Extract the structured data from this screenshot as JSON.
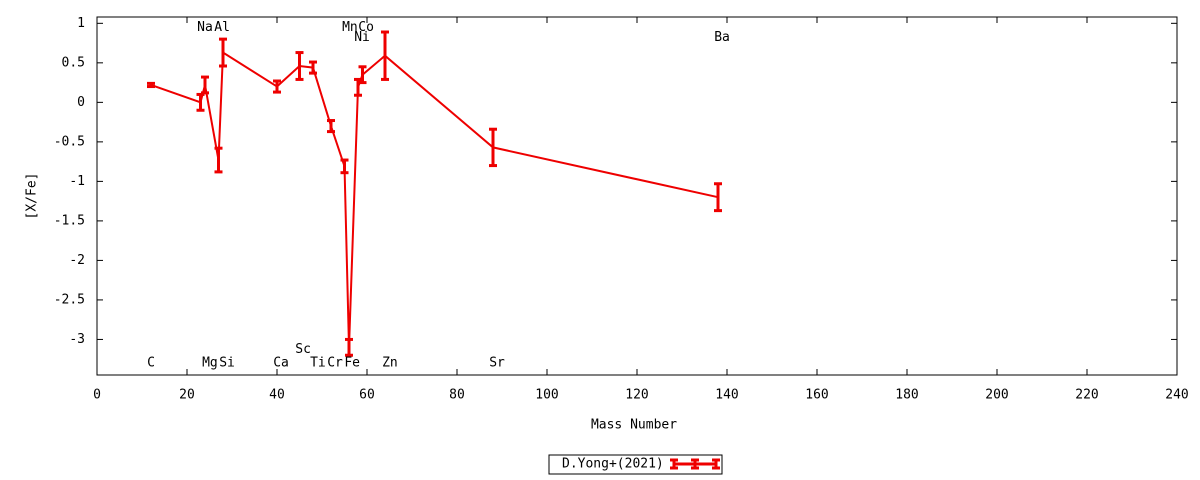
{
  "chart_data": {
    "type": "line",
    "xlabel": "Mass Number",
    "ylabel": "[X/Fe]",
    "xlim": [
      0,
      240
    ],
    "ylim": [
      -3.45,
      1.08
    ],
    "xticks": [
      0,
      20,
      40,
      60,
      80,
      100,
      120,
      140,
      160,
      180,
      200,
      220,
      240
    ],
    "yticks": [
      -3,
      -2.5,
      -2,
      -1.5,
      -1,
      -0.5,
      0,
      0.5,
      1
    ],
    "series": [
      {
        "name": "D.Yong+(2021)",
        "color": "#ee0000",
        "x": [
          12,
          23,
          24,
          27,
          28,
          40,
          45,
          48,
          52,
          55,
          56,
          58,
          59,
          64,
          88,
          138
        ],
        "values": [
          0.22,
          0.0,
          0.22,
          -0.73,
          0.63,
          0.2,
          0.46,
          0.44,
          -0.3,
          -0.81,
          -3.1,
          0.19,
          0.35,
          0.59,
          -0.57,
          -1.2
        ],
        "errors": [
          0.02,
          0.1,
          0.1,
          0.15,
          0.17,
          0.07,
          0.17,
          0.07,
          0.07,
          0.08,
          0.1,
          0.1,
          0.1,
          0.3,
          0.23,
          0.17
        ]
      }
    ],
    "annotations": [
      {
        "text": "C",
        "x": 12,
        "y": -3.3
      },
      {
        "text": "Na",
        "x": 24,
        "y": 0.95
      },
      {
        "text": "Al",
        "x": 27.8,
        "y": 0.95
      },
      {
        "text": "Mg",
        "x": 25.1,
        "y": -3.3
      },
      {
        "text": "Si",
        "x": 28.9,
        "y": -3.3
      },
      {
        "text": "Ca",
        "x": 40.9,
        "y": -3.3
      },
      {
        "text": "Sc",
        "x": 45.8,
        "y": -3.13
      },
      {
        "text": "Ti",
        "x": 49.1,
        "y": -3.3
      },
      {
        "text": "Cr",
        "x": 52.9,
        "y": -3.3
      },
      {
        "text": "Fe",
        "x": 56.7,
        "y": -3.3
      },
      {
        "text": "Mn",
        "x": 56.2,
        "y": 0.95
      },
      {
        "text": "Co",
        "x": 59.8,
        "y": 0.95
      },
      {
        "text": "Ni",
        "x": 58.9,
        "y": 0.82
      },
      {
        "text": "Zn",
        "x": 65.1,
        "y": -3.3
      },
      {
        "text": "Sr",
        "x": 88.9,
        "y": -3.3
      },
      {
        "text": "Ba",
        "x": 138.9,
        "y": 0.82
      }
    ]
  }
}
